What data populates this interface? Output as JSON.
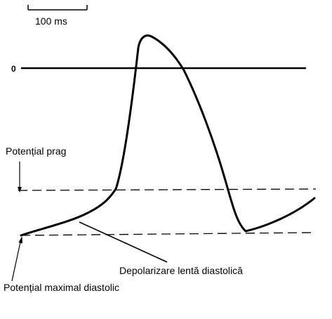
{
  "scale_bar": {
    "label": "100 ms"
  },
  "zero_label": "0",
  "labels": {
    "threshold": "Potențial prag",
    "slow_depolarization": "Depolarizare lentă diastolică",
    "max_diastolic": "Potențial maximal diastolic"
  },
  "colors": {
    "ink": "#000000",
    "background": "#ffffff"
  }
}
